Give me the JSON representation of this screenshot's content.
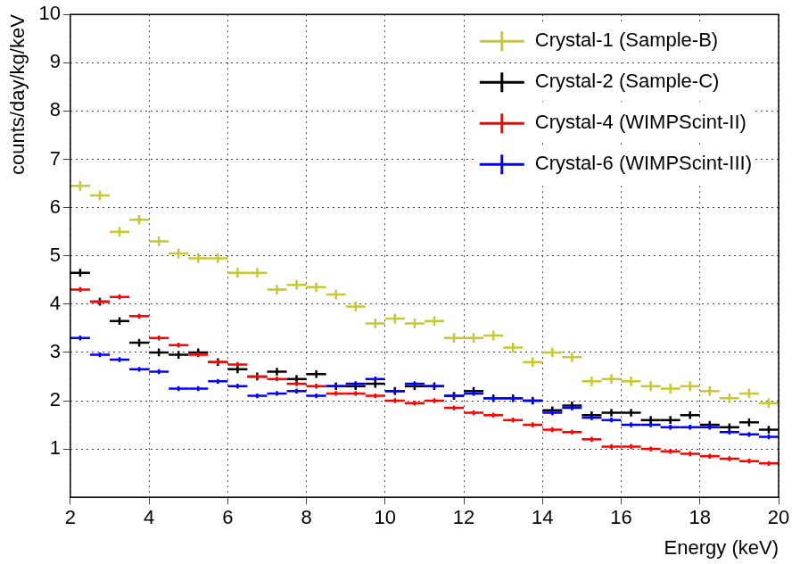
{
  "chart_data": {
    "type": "scatter",
    "x_label": "Energy (keV)",
    "y_label": "counts/day/kg/keV",
    "xlim": [
      2,
      20
    ],
    "xticks": [
      2,
      4,
      6,
      8,
      10,
      12,
      14,
      16,
      18,
      20
    ],
    "ylim": [
      0,
      10
    ],
    "yticks": [
      1,
      2,
      3,
      4,
      5,
      6,
      7,
      8,
      9,
      10
    ],
    "grid": true,
    "legend": "top-right",
    "marker": "cross",
    "x_error": 0.25,
    "x": [
      2.25,
      2.75,
      3.25,
      3.75,
      4.25,
      4.75,
      5.25,
      5.75,
      6.25,
      6.75,
      7.25,
      7.75,
      8.25,
      8.75,
      9.25,
      9.75,
      10.25,
      10.75,
      11.25,
      11.75,
      12.25,
      12.75,
      13.25,
      13.75,
      14.25,
      14.75,
      15.25,
      15.75,
      16.25,
      16.75,
      17.25,
      17.75,
      18.25,
      18.75,
      19.25,
      19.75
    ],
    "series": [
      {
        "name": "Crystal-1 (Sample-B)",
        "color": "#c8c832",
        "y_error": 0.1,
        "values": [
          6.45,
          6.25,
          5.5,
          5.75,
          5.3,
          5.05,
          4.95,
          4.95,
          4.65,
          4.65,
          4.3,
          4.4,
          4.35,
          4.2,
          3.95,
          3.6,
          3.7,
          3.6,
          3.65,
          3.3,
          3.3,
          3.35,
          3.1,
          2.8,
          3.0,
          2.9,
          2.4,
          2.45,
          2.4,
          2.3,
          2.25,
          2.3,
          2.2,
          2.05,
          2.15,
          1.95
        ]
      },
      {
        "name": "Crystal-2 (Sample-C)",
        "color": "#000000",
        "y_error": 0.08,
        "values": [
          4.65,
          4.05,
          3.65,
          3.2,
          3.0,
          2.95,
          3.0,
          2.8,
          2.65,
          2.5,
          2.6,
          2.45,
          2.55,
          2.3,
          2.3,
          2.35,
          2.2,
          2.3,
          2.3,
          2.1,
          2.2,
          2.05,
          2.05,
          2.0,
          1.8,
          1.9,
          1.7,
          1.75,
          1.75,
          1.6,
          1.6,
          1.7,
          1.5,
          1.45,
          1.55,
          1.4
        ]
      },
      {
        "name": "Crystal-4 (WIMPScint-II)",
        "color": "#ff0000",
        "y_error": 0.05,
        "values": [
          4.3,
          4.05,
          4.15,
          3.75,
          3.3,
          3.15,
          2.95,
          2.8,
          2.75,
          2.5,
          2.45,
          2.35,
          2.3,
          2.15,
          2.15,
          2.1,
          2.0,
          1.95,
          2.0,
          1.85,
          1.75,
          1.7,
          1.6,
          1.5,
          1.4,
          1.35,
          1.2,
          1.05,
          1.05,
          1.0,
          0.95,
          0.9,
          0.85,
          0.8,
          0.75,
          0.7
        ]
      },
      {
        "name": "Crystal-6 (WIMPScint-III)",
        "color": "#0000ff",
        "y_error": 0.05,
        "values": [
          3.3,
          2.95,
          2.85,
          2.65,
          2.6,
          2.25,
          2.25,
          2.4,
          2.3,
          2.1,
          2.15,
          2.2,
          2.1,
          2.3,
          2.35,
          2.45,
          2.2,
          2.35,
          2.3,
          2.1,
          2.15,
          2.05,
          2.05,
          2.0,
          1.75,
          1.85,
          1.65,
          1.6,
          1.5,
          1.5,
          1.45,
          1.45,
          1.45,
          1.35,
          1.3,
          1.25
        ]
      }
    ]
  }
}
